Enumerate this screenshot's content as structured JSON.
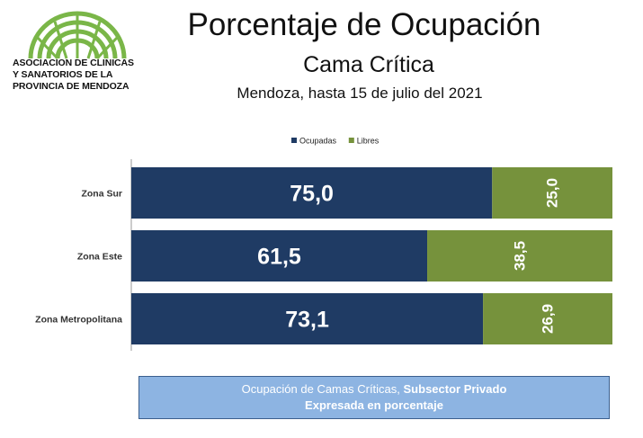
{
  "logo": {
    "icon": "green-arch-logo-icon",
    "lines": [
      "ASOCIACION DE CLINICAS",
      "Y SANATORIOS DE LA",
      "PROVINCIA DE MENDOZA"
    ]
  },
  "header": {
    "title": "Porcentaje de Ocupación",
    "subtitle": "Cama Crítica",
    "date": "Mendoza, hasta 15 de julio del 2021"
  },
  "colors": {
    "ocupadas": "#1f3b64",
    "libres": "#76923c"
  },
  "chart_data": {
    "type": "bar",
    "orientation": "horizontal",
    "stacked": true,
    "categories": [
      "Zona Sur",
      "Zona Este",
      "Zona Metropolitana"
    ],
    "series": [
      {
        "name": "Ocupadas",
        "values": [
          75.0,
          61.5,
          73.1
        ],
        "labels": [
          "75,0",
          "61,5",
          "73,1"
        ]
      },
      {
        "name": "Libres",
        "values": [
          25.0,
          38.5,
          26.9
        ],
        "labels": [
          "25,0",
          "38,5",
          "26,9"
        ]
      }
    ],
    "xlim": [
      0,
      100
    ],
    "legend_position": "top-center"
  },
  "caption": {
    "line1_prefix": "Ocupación de Camas Críticas, ",
    "line1_bold": "Subsector Privado",
    "line2": "Expresada en porcentaje"
  }
}
